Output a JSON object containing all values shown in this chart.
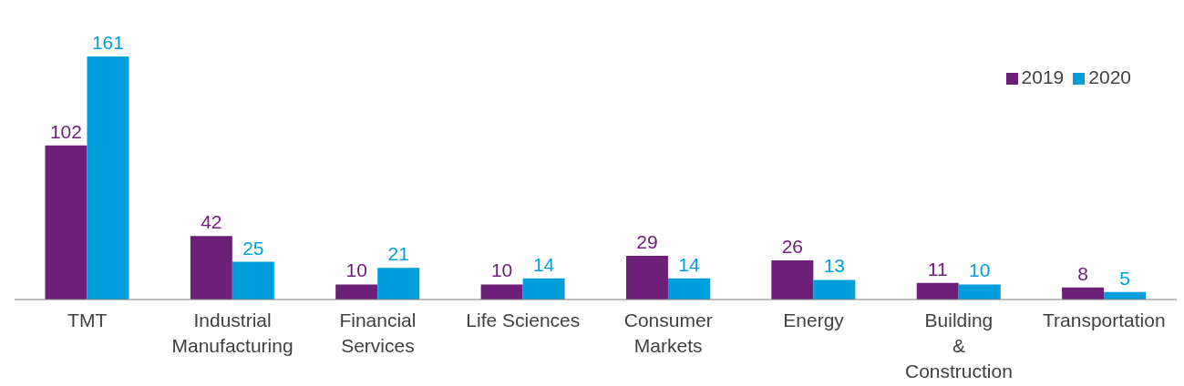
{
  "chart_data": {
    "type": "bar",
    "categories": [
      "TMT",
      "Industrial\nManufacturing",
      "Financial\nServices",
      "Life Sciences",
      "Consumer\nMarkets",
      "Energy",
      "Building\n&\nConstruction",
      "Transportation"
    ],
    "series": [
      {
        "name": "2019",
        "color": "#6d2077",
        "values": [
          102,
          42,
          10,
          10,
          29,
          26,
          11,
          8
        ]
      },
      {
        "name": "2020",
        "color": "#009fdc",
        "values": [
          161,
          25,
          21,
          14,
          14,
          13,
          10,
          5
        ]
      }
    ],
    "data_labels": true,
    "grid": false,
    "legend": "top right"
  }
}
